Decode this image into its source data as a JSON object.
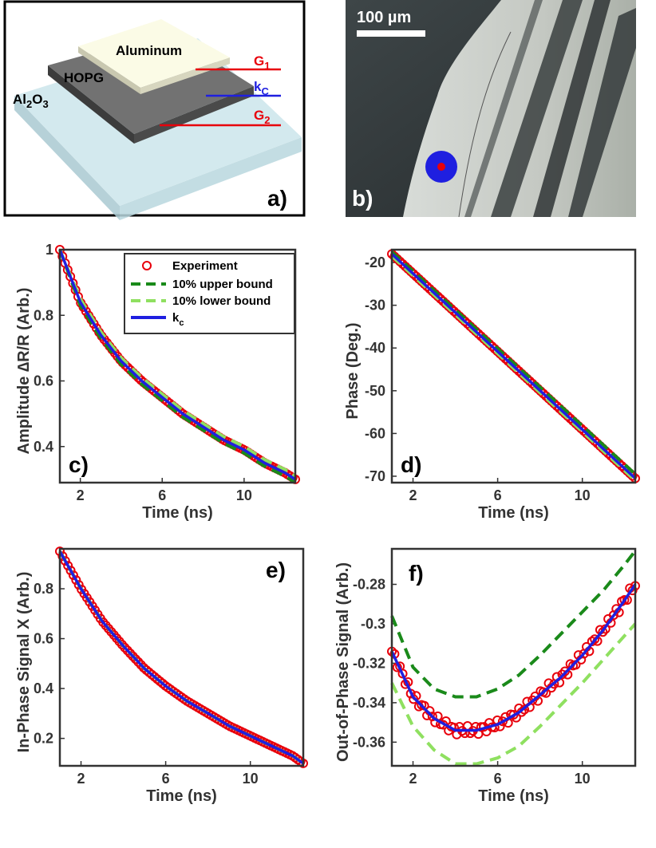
{
  "schematic": {
    "label": "a)",
    "layers": [
      "Aluminum",
      "HOPG",
      "Al2O3"
    ],
    "interfaces": [
      {
        "name": "G",
        "sub": "1",
        "color": "#e8000b"
      },
      {
        "name": "k",
        "sub": "C",
        "color": "#1f1fe0"
      },
      {
        "name": "G",
        "sub": "2",
        "color": "#e8000b"
      }
    ]
  },
  "micrograph": {
    "label": "b)",
    "scalebar": "100 µm"
  },
  "legend": {
    "entries": [
      "Experiment",
      "10% upper bound",
      "10% lower bound",
      "k"
    ],
    "kc_sub": "c"
  },
  "colors": {
    "experiment": "#e8000b",
    "upper": "#1a8a1a",
    "lower": "#8fe060",
    "fit": "#1f1fe0"
  },
  "chart_data": [
    {
      "panel": "c)",
      "type": "line",
      "xlabel": "Time (ns)",
      "ylabel": "Amplitude ∆R/R (Arb.)",
      "xlim": [
        1,
        12.5
      ],
      "ylim": [
        0.29,
        1.0
      ],
      "xticks": [
        2,
        6,
        10
      ],
      "yticks": [
        0.4,
        0.6,
        0.8,
        1.0
      ],
      "yticklabels": [
        "0.4",
        "0.6",
        "0.8",
        "1"
      ],
      "x": [
        1,
        2,
        3,
        4,
        5,
        6,
        7,
        8,
        9,
        10,
        11,
        12,
        12.5
      ],
      "series": [
        {
          "name": "Experiment",
          "values": [
            1.0,
            0.84,
            0.74,
            0.66,
            0.6,
            0.55,
            0.5,
            0.46,
            0.42,
            0.39,
            0.35,
            0.32,
            0.3
          ]
        },
        {
          "name": "10% upper bound",
          "values": [
            1.0,
            0.83,
            0.73,
            0.65,
            0.59,
            0.54,
            0.49,
            0.45,
            0.41,
            0.38,
            0.34,
            0.31,
            0.29
          ]
        },
        {
          "name": "10% lower bound",
          "values": [
            1.0,
            0.85,
            0.75,
            0.67,
            0.61,
            0.56,
            0.51,
            0.47,
            0.43,
            0.4,
            0.36,
            0.33,
            0.31
          ]
        },
        {
          "name": "k",
          "values": [
            1.0,
            0.84,
            0.74,
            0.66,
            0.6,
            0.55,
            0.5,
            0.46,
            0.42,
            0.39,
            0.35,
            0.32,
            0.3
          ]
        }
      ]
    },
    {
      "panel": "d)",
      "type": "line",
      "xlabel": "Time (ns)",
      "ylabel": "Phase (Deg.)",
      "xlim": [
        1,
        12.5
      ],
      "ylim": [
        -71.5,
        -17
      ],
      "xticks": [
        2,
        6,
        10
      ],
      "yticks": [
        -70,
        -60,
        -50,
        -40,
        -30,
        -20
      ],
      "yticklabels": [
        "-70",
        "-60",
        "-50",
        "-40",
        "-30",
        "-20"
      ],
      "x": [
        1,
        12.5
      ],
      "series": [
        {
          "name": "Experiment",
          "values": [
            -18,
            -70.5
          ]
        },
        {
          "name": "10% upper bound",
          "values": [
            -17.5,
            -69.5
          ]
        },
        {
          "name": "10% lower bound",
          "values": [
            -18.5,
            -71
          ]
        },
        {
          "name": "k",
          "values": [
            -18,
            -70.5
          ]
        }
      ]
    },
    {
      "panel": "e)",
      "type": "line",
      "xlabel": "Time (ns)",
      "ylabel": "In-Phase Signal X (Arb.)",
      "xlim": [
        1,
        12.5
      ],
      "ylim": [
        0.09,
        0.96
      ],
      "xticks": [
        2,
        6,
        10
      ],
      "yticks": [
        0.2,
        0.4,
        0.6,
        0.8
      ],
      "yticklabels": [
        "0.2",
        "0.4",
        "0.6",
        "0.8"
      ],
      "x": [
        1,
        2,
        3,
        4,
        5,
        6,
        7,
        8,
        9,
        10,
        11,
        12,
        12.5
      ],
      "series": [
        {
          "name": "Experiment",
          "values": [
            0.95,
            0.8,
            0.67,
            0.57,
            0.48,
            0.41,
            0.35,
            0.3,
            0.25,
            0.21,
            0.17,
            0.13,
            0.1
          ]
        },
        {
          "name": "10% upper bound",
          "values": [
            0.95,
            0.8,
            0.67,
            0.57,
            0.48,
            0.41,
            0.35,
            0.3,
            0.25,
            0.21,
            0.17,
            0.13,
            0.1
          ]
        },
        {
          "name": "10% lower bound",
          "values": [
            0.95,
            0.8,
            0.67,
            0.57,
            0.48,
            0.41,
            0.35,
            0.3,
            0.25,
            0.21,
            0.17,
            0.13,
            0.1
          ]
        },
        {
          "name": "k",
          "values": [
            0.95,
            0.8,
            0.67,
            0.57,
            0.48,
            0.41,
            0.35,
            0.3,
            0.25,
            0.21,
            0.17,
            0.13,
            0.1
          ]
        }
      ]
    },
    {
      "panel": "f)",
      "type": "line",
      "xlabel": "Time (ns)",
      "ylabel": "Out-of-Phase Signal (Arb.)",
      "xlim": [
        1,
        12.5
      ],
      "ylim": [
        -0.372,
        -0.262
      ],
      "xticks": [
        2,
        6,
        10
      ],
      "yticks": [
        -0.36,
        -0.34,
        -0.32,
        -0.3,
        -0.28
      ],
      "yticklabels": [
        "-0.36",
        "-0.34",
        "-0.32",
        "-0.3",
        "-0.28"
      ],
      "x": [
        1,
        2,
        3,
        4,
        5,
        6,
        7,
        8,
        9,
        10,
        11,
        12,
        12.5
      ],
      "series": [
        {
          "name": "Experiment",
          "values": [
            -0.314,
            -0.337,
            -0.348,
            -0.354,
            -0.354,
            -0.351,
            -0.345,
            -0.336,
            -0.327,
            -0.316,
            -0.303,
            -0.288,
            -0.28
          ]
        },
        {
          "name": "10% upper bound",
          "values": [
            -0.296,
            -0.322,
            -0.333,
            -0.337,
            -0.337,
            -0.333,
            -0.326,
            -0.316,
            -0.305,
            -0.294,
            -0.283,
            -0.27,
            -0.263
          ]
        },
        {
          "name": "10% lower bound",
          "values": [
            -0.33,
            -0.352,
            -0.364,
            -0.371,
            -0.371,
            -0.368,
            -0.362,
            -0.352,
            -0.341,
            -0.33,
            -0.318,
            -0.306,
            -0.3
          ]
        },
        {
          "name": "k",
          "values": [
            -0.314,
            -0.337,
            -0.348,
            -0.354,
            -0.354,
            -0.351,
            -0.345,
            -0.336,
            -0.327,
            -0.316,
            -0.303,
            -0.288,
            -0.28
          ]
        }
      ]
    }
  ]
}
